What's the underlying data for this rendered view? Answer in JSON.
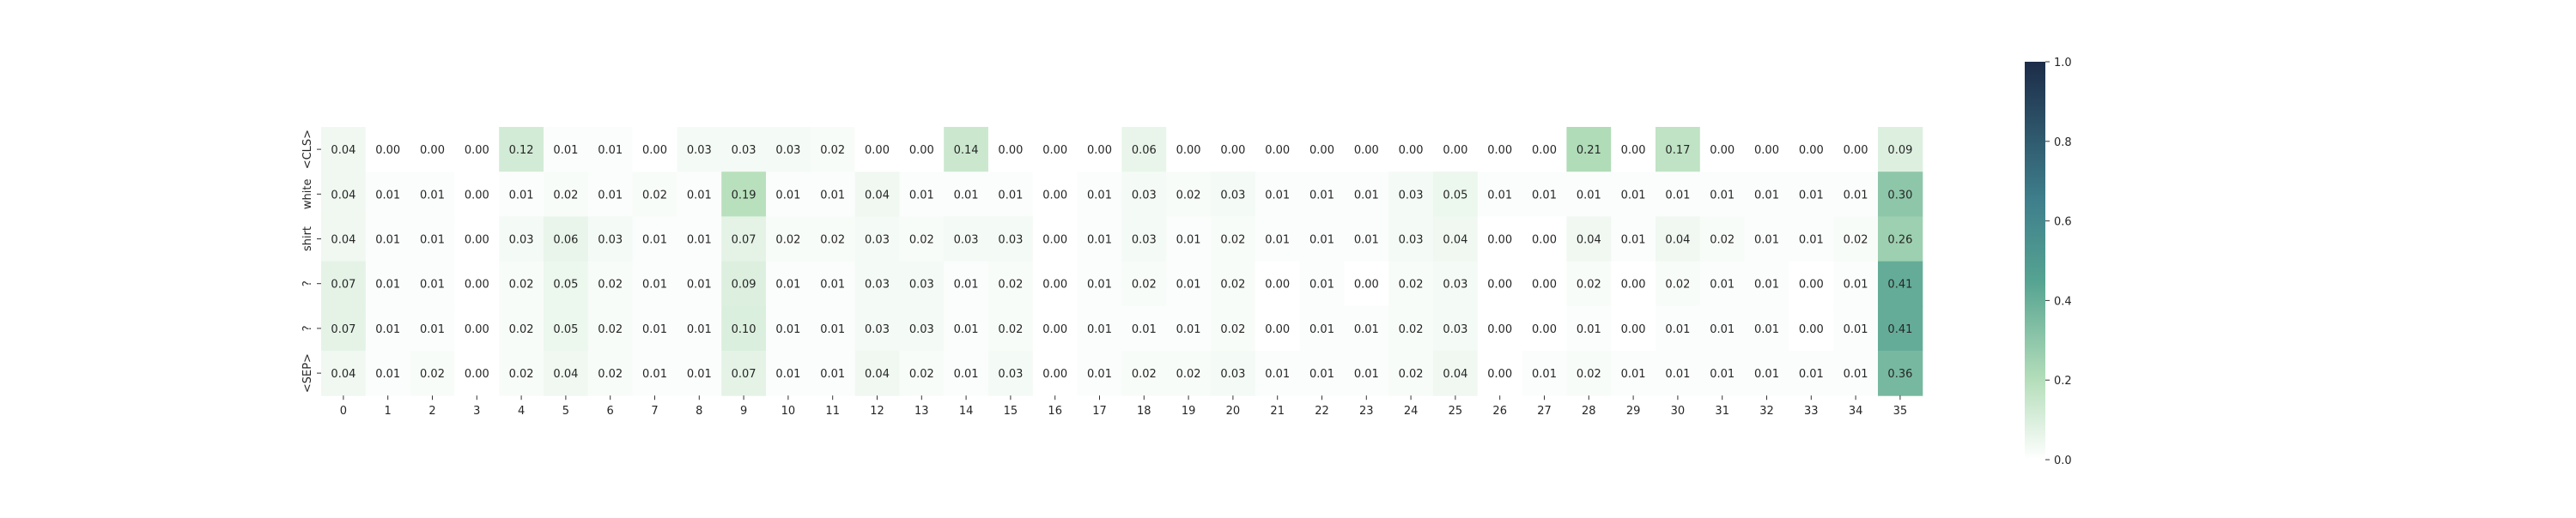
{
  "chart_data": {
    "type": "heatmap",
    "x_labels": [
      "0",
      "1",
      "2",
      "3",
      "4",
      "5",
      "6",
      "7",
      "8",
      "9",
      "10",
      "11",
      "12",
      "13",
      "14",
      "15",
      "16",
      "17",
      "18",
      "19",
      "20",
      "21",
      "22",
      "23",
      "24",
      "25",
      "26",
      "27",
      "28",
      "29",
      "30",
      "31",
      "32",
      "33",
      "34",
      "35"
    ],
    "y_labels": [
      "<CLS>",
      "white",
      "shirt",
      "?",
      "?",
      "<SEP>"
    ],
    "values": [
      [
        0.04,
        0.0,
        0.0,
        0.0,
        0.12,
        0.01,
        0.01,
        0.0,
        0.03,
        0.03,
        0.03,
        0.02,
        0.0,
        0.0,
        0.14,
        0.0,
        0.0,
        0.0,
        0.06,
        0.0,
        0.0,
        0.0,
        0.0,
        0.0,
        0.0,
        0.0,
        0.0,
        0.0,
        0.21,
        0.0,
        0.17,
        0.0,
        0.0,
        0.0,
        0.0,
        0.09
      ],
      [
        0.04,
        0.01,
        0.01,
        0.0,
        0.01,
        0.02,
        0.01,
        0.02,
        0.01,
        0.19,
        0.01,
        0.01,
        0.04,
        0.01,
        0.01,
        0.01,
        0.0,
        0.01,
        0.03,
        0.02,
        0.03,
        0.01,
        0.01,
        0.01,
        0.03,
        0.05,
        0.01,
        0.01,
        0.01,
        0.01,
        0.01,
        0.01,
        0.01,
        0.01,
        0.01,
        0.3
      ],
      [
        0.04,
        0.01,
        0.01,
        0.0,
        0.03,
        0.06,
        0.03,
        0.01,
        0.01,
        0.07,
        0.02,
        0.02,
        0.03,
        0.02,
        0.03,
        0.03,
        0.0,
        0.01,
        0.03,
        0.01,
        0.02,
        0.01,
        0.01,
        0.01,
        0.03,
        0.04,
        0.0,
        0.0,
        0.04,
        0.01,
        0.04,
        0.02,
        0.01,
        0.01,
        0.02,
        0.26
      ],
      [
        0.07,
        0.01,
        0.01,
        0.0,
        0.02,
        0.05,
        0.02,
        0.01,
        0.01,
        0.09,
        0.01,
        0.01,
        0.03,
        0.03,
        0.01,
        0.02,
        0.0,
        0.01,
        0.02,
        0.01,
        0.02,
        0.0,
        0.01,
        0.0,
        0.02,
        0.03,
        0.0,
        0.0,
        0.02,
        0.0,
        0.02,
        0.01,
        0.01,
        0.0,
        0.01,
        0.41
      ],
      [
        0.07,
        0.01,
        0.01,
        0.0,
        0.02,
        0.05,
        0.02,
        0.01,
        0.01,
        0.1,
        0.01,
        0.01,
        0.03,
        0.03,
        0.01,
        0.02,
        0.0,
        0.01,
        0.01,
        0.01,
        0.02,
        0.0,
        0.01,
        0.01,
        0.02,
        0.03,
        0.0,
        0.0,
        0.01,
        0.0,
        0.01,
        0.01,
        0.01,
        0.0,
        0.01,
        0.41
      ],
      [
        0.04,
        0.01,
        0.02,
        0.0,
        0.02,
        0.04,
        0.02,
        0.01,
        0.01,
        0.07,
        0.01,
        0.01,
        0.04,
        0.02,
        0.01,
        0.03,
        0.0,
        0.01,
        0.02,
        0.02,
        0.03,
        0.01,
        0.01,
        0.01,
        0.02,
        0.04,
        0.0,
        0.01,
        0.02,
        0.01,
        0.01,
        0.01,
        0.01,
        0.01,
        0.01,
        0.36
      ]
    ],
    "vmin": 0.0,
    "vmax": 1.0,
    "colorbar_ticks": [
      "0.0",
      "0.2",
      "0.4",
      "0.6",
      "0.8",
      "1.0"
    ],
    "colormap": [
      "#ffffff",
      "#b4deba",
      "#55a391",
      "#3f7f8c",
      "#1c2c48"
    ]
  }
}
